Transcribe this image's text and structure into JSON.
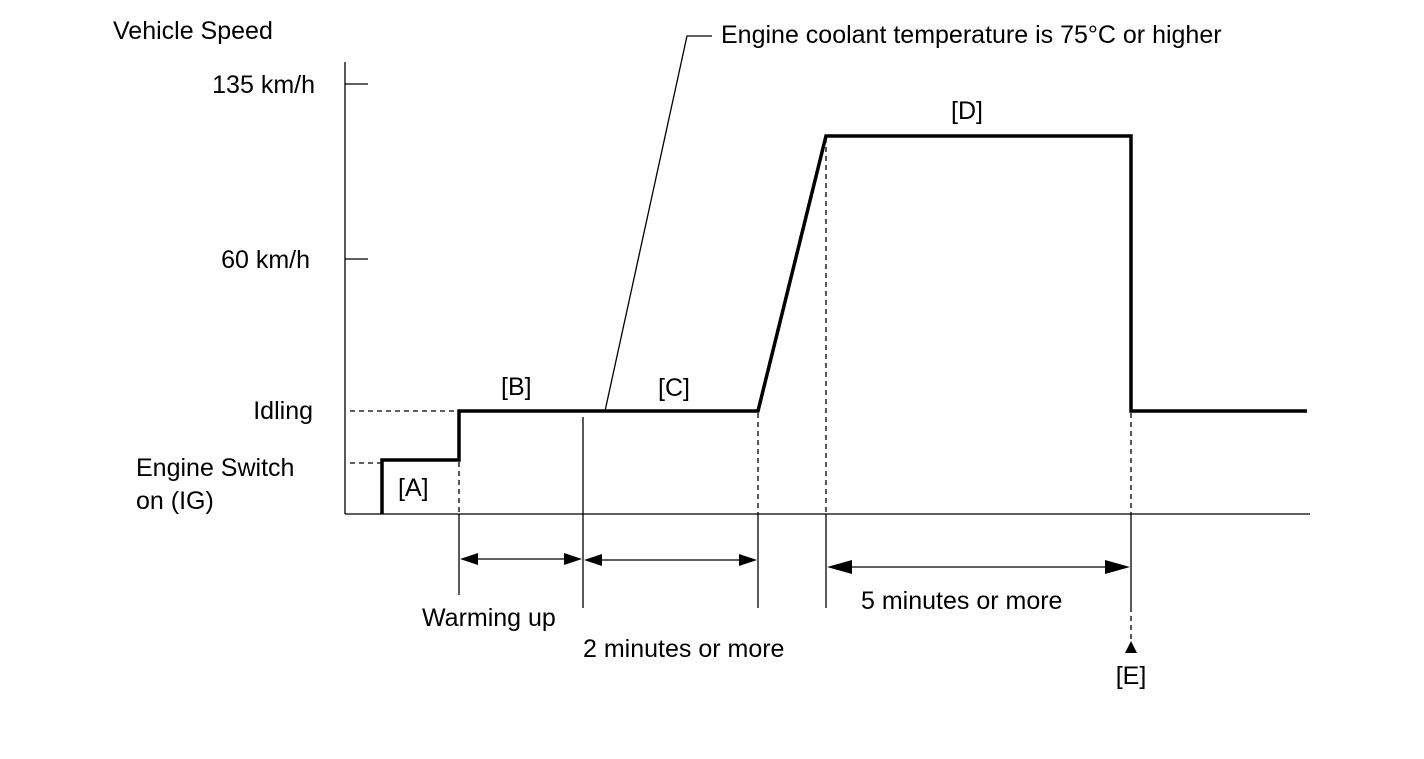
{
  "axis": {
    "y_title": "Vehicle Speed",
    "levels": {
      "speed_135": "135 km/h",
      "speed_60": "60 km/h",
      "idling": "Idling",
      "engine_switch_line1": "Engine Switch",
      "engine_switch_line2": "on (IG)"
    }
  },
  "segments": {
    "a": "[A]",
    "b": "[B]",
    "c": "[C]",
    "d": "[D]",
    "e": "[E]"
  },
  "annotations": {
    "coolant": "Engine coolant temperature is 75°C or higher",
    "warming_up": "Warming up",
    "two_minutes": "2 minutes or more",
    "five_minutes": "5 minutes or more"
  },
  "colors": {
    "line": "#000000",
    "background": "#ffffff"
  }
}
